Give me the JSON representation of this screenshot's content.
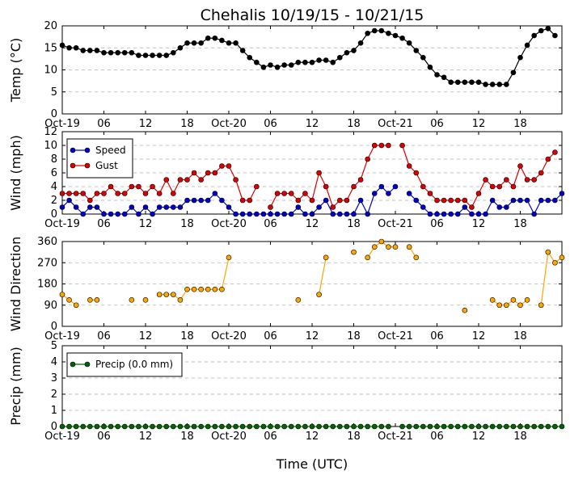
{
  "title": "Chehalis 10/19/15 - 10/21/15",
  "xlabel": "Time (UTC)",
  "time_axis": {
    "range_hours": [
      0,
      72
    ],
    "tick_hours": [
      0,
      6,
      12,
      18,
      24,
      30,
      36,
      42,
      48,
      54,
      60,
      66
    ],
    "tick_labels": [
      "Oct-19",
      "06",
      "12",
      "18",
      "Oct-20",
      "06",
      "12",
      "18",
      "Oct-21",
      "06",
      "12",
      "18"
    ]
  },
  "chart_data": [
    {
      "type": "line",
      "ylabel": "Temp (°C)",
      "ylim": [
        0,
        20
      ],
      "yticks": [
        0,
        5,
        10,
        15,
        20
      ],
      "grid": true,
      "legend": null,
      "series": [
        {
          "color": "#000000",
          "x": [
            0,
            1,
            2,
            3,
            4,
            5,
            6,
            7,
            8,
            9,
            10,
            11,
            12,
            13,
            14,
            15,
            16,
            17,
            18,
            19,
            20,
            21,
            22,
            23,
            24,
            25,
            26,
            27,
            28,
            29,
            30,
            31,
            32,
            33,
            34,
            35,
            36,
            37,
            38,
            39,
            40,
            41,
            42,
            43,
            44,
            45,
            46,
            47,
            48,
            49,
            50,
            51,
            52,
            53,
            54,
            55,
            56,
            57,
            58,
            59,
            60,
            61,
            62,
            63,
            64,
            65,
            66,
            67,
            68,
            69,
            70,
            71,
            72
          ],
          "values": [
            15.6,
            15,
            15,
            14.4,
            14.4,
            14.4,
            13.9,
            13.9,
            13.9,
            13.9,
            13.9,
            13.3,
            13.3,
            13.3,
            13.3,
            13.3,
            13.9,
            15,
            16.1,
            16.1,
            16.1,
            17.2,
            17.2,
            16.7,
            16.1,
            16.1,
            14.4,
            12.8,
            11.7,
            10.6,
            11.1,
            10.6,
            11.1,
            11.1,
            11.7,
            11.7,
            11.7,
            12.2,
            12.2,
            11.7,
            12.8,
            13.9,
            14.4,
            16.1,
            18.3,
            18.9,
            18.9,
            18.3,
            17.8,
            17.2,
            16.1,
            14.4,
            12.8,
            10.6,
            8.9,
            8.3,
            7.2,
            7.2,
            7.2,
            7.2,
            7.2,
            6.7,
            6.7,
            6.7,
            6.7,
            9.4,
            12.8,
            15.6,
            17.8,
            18.9,
            19.4,
            17.8,
            null
          ]
        }
      ]
    },
    {
      "type": "line",
      "ylabel": "Wind (mph)",
      "ylim": [
        0,
        12
      ],
      "yticks": [
        0,
        2,
        4,
        6,
        8,
        10,
        12
      ],
      "grid": true,
      "legend": "top-left",
      "series": [
        {
          "name": "Speed",
          "color": "#0000cc",
          "x": [
            0,
            1,
            2,
            3,
            4,
            5,
            6,
            7,
            8,
            9,
            10,
            11,
            12,
            13,
            14,
            15,
            16,
            17,
            18,
            19,
            20,
            21,
            22,
            23,
            24,
            25,
            26,
            27,
            28,
            29,
            30,
            31,
            32,
            33,
            34,
            35,
            36,
            37,
            38,
            39,
            40,
            41,
            42,
            43,
            44,
            45,
            46,
            47,
            48,
            49,
            50,
            51,
            52,
            53,
            54,
            55,
            56,
            57,
            58,
            59,
            60,
            61,
            62,
            63,
            64,
            65,
            66,
            67,
            68,
            69,
            70,
            71,
            72
          ],
          "values": [
            1,
            2,
            1,
            0,
            1,
            1,
            0,
            0,
            0,
            0,
            1,
            0,
            1,
            0,
            1,
            1,
            1,
            1,
            2,
            2,
            2,
            2,
            3,
            2,
            1,
            0,
            0,
            0,
            0,
            0,
            0,
            0,
            0,
            0,
            1,
            0,
            0,
            1,
            2,
            0,
            0,
            0,
            0,
            2,
            0,
            3,
            4,
            3,
            4,
            null,
            3,
            2,
            1,
            0,
            0,
            0,
            0,
            0,
            1,
            0,
            0,
            0,
            2,
            1,
            1,
            2,
            2,
            2,
            0,
            2,
            2,
            2,
            3
          ]
        },
        {
          "name": "Gust",
          "color": "#dd0000",
          "x": [
            0,
            1,
            2,
            3,
            4,
            5,
            6,
            7,
            8,
            9,
            10,
            11,
            12,
            13,
            14,
            15,
            16,
            17,
            18,
            19,
            20,
            21,
            22,
            23,
            24,
            25,
            26,
            27,
            28,
            29,
            30,
            31,
            32,
            33,
            34,
            35,
            36,
            37,
            38,
            39,
            40,
            41,
            42,
            43,
            44,
            45,
            46,
            47,
            48,
            49,
            50,
            51,
            52,
            53,
            54,
            55,
            56,
            57,
            58,
            59,
            60,
            61,
            62,
            63,
            64,
            65,
            66,
            67,
            68,
            69,
            70,
            71,
            72
          ],
          "values": [
            3,
            3,
            3,
            3,
            2,
            3,
            3,
            4,
            3,
            3,
            4,
            4,
            3,
            4,
            3,
            5,
            3,
            5,
            5,
            6,
            5,
            6,
            6,
            7,
            7,
            5,
            2,
            2,
            4,
            null,
            1,
            3,
            3,
            3,
            2,
            3,
            2,
            6,
            4,
            1,
            2,
            2,
            4,
            5,
            8,
            10,
            10,
            10,
            null,
            10,
            7,
            6,
            4,
            3,
            2,
            2,
            2,
            2,
            2,
            1,
            3,
            5,
            4,
            4,
            5,
            4,
            7,
            5,
            5,
            6,
            8,
            9,
            null
          ]
        }
      ]
    },
    {
      "type": "scatter",
      "ylabel": "Wind Direction",
      "ylim": [
        0,
        360
      ],
      "yticks": [
        0,
        90,
        180,
        270,
        360
      ],
      "grid": true,
      "legend": null,
      "series": [
        {
          "color": "#ffa500",
          "x": [
            0,
            1,
            2,
            3,
            4,
            5,
            6,
            7,
            8,
            9,
            10,
            11,
            12,
            13,
            14,
            15,
            16,
            17,
            18,
            19,
            20,
            21,
            22,
            23,
            24,
            25,
            26,
            27,
            28,
            29,
            30,
            31,
            32,
            33,
            34,
            35,
            36,
            37,
            38,
            39,
            40,
            41,
            42,
            43,
            44,
            45,
            46,
            47,
            48,
            49,
            50,
            51,
            52,
            53,
            54,
            55,
            56,
            57,
            58,
            59,
            60,
            61,
            62,
            63,
            64,
            65,
            66,
            67,
            68,
            69,
            70,
            71,
            72
          ],
          "values": [
            135,
            112,
            90,
            null,
            112,
            112,
            null,
            null,
            null,
            null,
            112,
            null,
            112,
            null,
            135,
            135,
            135,
            112,
            157,
            157,
            157,
            157,
            157,
            157,
            292,
            null,
            null,
            null,
            null,
            null,
            null,
            null,
            null,
            null,
            112,
            null,
            null,
            135,
            292,
            null,
            null,
            null,
            315,
            null,
            292,
            337,
            360,
            337,
            337,
            null,
            337,
            292,
            null,
            null,
            null,
            null,
            null,
            null,
            68,
            null,
            null,
            null,
            112,
            90,
            90,
            112,
            90,
            112,
            null,
            90,
            315,
            270,
            292
          ]
        }
      ]
    },
    {
      "type": "line",
      "ylabel": "Precip (mm)",
      "ylim": [
        0,
        5
      ],
      "yticks": [
        0,
        1,
        2,
        3,
        4,
        5
      ],
      "grid": true,
      "legend": "top-left",
      "series": [
        {
          "name": "Precip (0.0 mm)",
          "color": "#006600",
          "x": [
            0,
            1,
            2,
            3,
            4,
            5,
            6,
            7,
            8,
            9,
            10,
            11,
            12,
            13,
            14,
            15,
            16,
            17,
            18,
            19,
            20,
            21,
            22,
            23,
            24,
            25,
            26,
            27,
            28,
            29,
            30,
            31,
            32,
            33,
            34,
            35,
            36,
            37,
            38,
            39,
            40,
            41,
            42,
            43,
            44,
            45,
            46,
            47,
            48,
            49,
            50,
            51,
            52,
            53,
            54,
            55,
            56,
            57,
            58,
            59,
            60,
            61,
            62,
            63,
            64,
            65,
            66,
            67,
            68,
            69,
            70,
            71,
            72
          ],
          "values": [
            0,
            0,
            0,
            0,
            0,
            0,
            0,
            0,
            0,
            0,
            0,
            0,
            0,
            0,
            0,
            0,
            0,
            0,
            0,
            0,
            0,
            0,
            0,
            0,
            0,
            0,
            0,
            0,
            0,
            0,
            0,
            0,
            0,
            0,
            0,
            0,
            0,
            0,
            0,
            0,
            0,
            0,
            0,
            0,
            0,
            0,
            0,
            0,
            null,
            0,
            0,
            0,
            0,
            0,
            0,
            0,
            0,
            0,
            0,
            0,
            0,
            0,
            0,
            0,
            0,
            0,
            0,
            0,
            0,
            0,
            0,
            0,
            0
          ]
        }
      ]
    }
  ]
}
